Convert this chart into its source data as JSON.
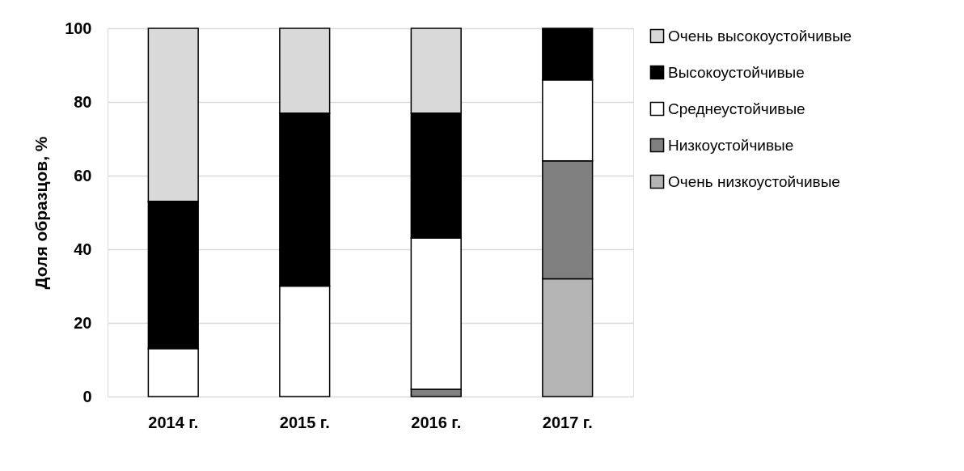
{
  "chart_data": {
    "type": "bar",
    "stacked": true,
    "ylabel": "Доля образцов, %",
    "categories": [
      "2014 г.",
      "2015 г.",
      "2016 г.",
      "2017 г."
    ],
    "series": [
      {
        "name": "Очень низкоустойчивые",
        "color": "#b4b4b4",
        "values": [
          0,
          0,
          0,
          32
        ]
      },
      {
        "name": "Низкоустойчивые",
        "color": "#808080",
        "values": [
          0,
          0,
          2,
          32
        ]
      },
      {
        "name": "Среднеустойчивые",
        "color": "#ffffff",
        "values": [
          13,
          30,
          41,
          22
        ]
      },
      {
        "name": "Высокоустойчивые",
        "color": "#000000",
        "values": [
          40,
          47,
          34,
          14
        ]
      },
      {
        "name": "Очень высокоустойчивые",
        "color": "#d9d9d9",
        "values": [
          47,
          23,
          23,
          0
        ]
      }
    ],
    "ylim": [
      0,
      100
    ],
    "yticks": [
      0,
      20,
      40,
      60,
      80,
      100
    ],
    "grid": "y",
    "legend": "right"
  }
}
